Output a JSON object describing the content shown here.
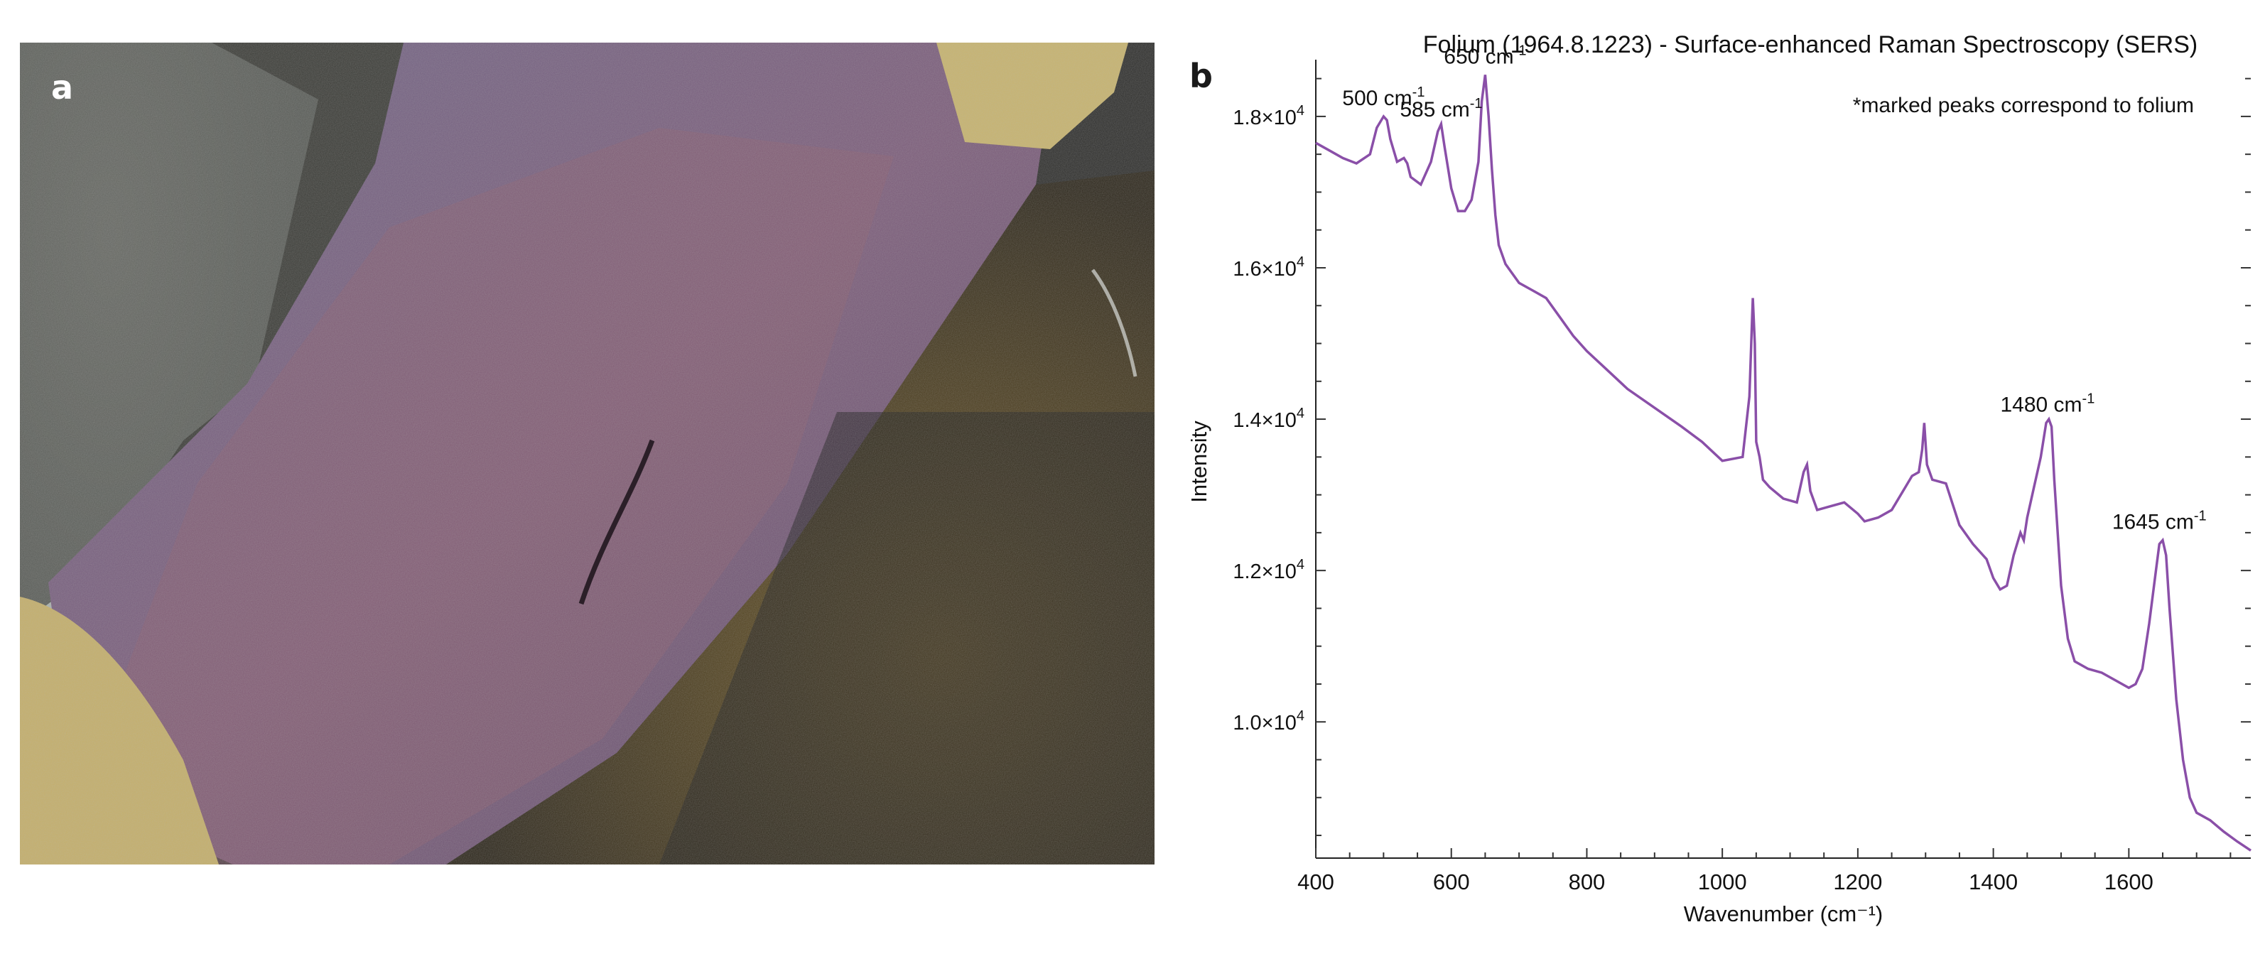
{
  "panels": {
    "a_label": "a",
    "b_label": "b"
  },
  "chart_data": {
    "type": "line",
    "title": "Folium (1964.8.1223) - Surface-enhanced Raman Spectroscopy (SERS)",
    "xlabel": "Wavenumber (cm⁻¹)",
    "ylabel": "Intensity",
    "xlim": [
      400,
      1780
    ],
    "ylim": [
      8200,
      18750
    ],
    "x_ticks": [
      400,
      600,
      800,
      1000,
      1200,
      1400,
      1600
    ],
    "y_ticks": [
      {
        "value": 10000,
        "mantissa": "1.0×10",
        "exp": "4"
      },
      {
        "value": 12000,
        "mantissa": "1.2×10",
        "exp": "4"
      },
      {
        "value": 14000,
        "mantissa": "1.4×10",
        "exp": "4"
      },
      {
        "value": 16000,
        "mantissa": "1.6×10",
        "exp": "4"
      },
      {
        "value": 18000,
        "mantissa": "1.8×10",
        "exp": "4"
      }
    ],
    "grid": false,
    "line_color": "#8a4fa8",
    "note": "*marked peaks correspond to folium",
    "annotations": [
      {
        "base": "500 cm",
        "sup": "-1",
        "x": 500,
        "y": 18000
      },
      {
        "base": "585 cm",
        "sup": "-1",
        "x": 585,
        "y": 17850
      },
      {
        "base": "650 cm",
        "sup": "-1",
        "x": 650,
        "y": 18550
      },
      {
        "base": "1480 cm",
        "sup": "-1",
        "x": 1480,
        "y": 13950
      },
      {
        "base": "1645 cm",
        "sup": "-1",
        "x": 1645,
        "y": 12400
      }
    ],
    "series": [
      {
        "x": [
          400,
          420,
          440,
          460,
          480,
          490,
          500,
          505,
          510,
          520,
          530,
          535,
          540,
          555,
          570,
          580,
          585,
          590,
          600,
          610,
          620,
          630,
          640,
          645,
          650,
          655,
          660,
          665,
          670,
          680,
          700,
          720,
          740,
          760,
          780,
          800,
          830,
          860,
          900,
          940,
          970,
          1000,
          1030,
          1040,
          1045,
          1048,
          1050,
          1055,
          1060,
          1070,
          1090,
          1110,
          1120,
          1125,
          1130,
          1140,
          1160,
          1180,
          1200,
          1210,
          1230,
          1250,
          1270,
          1280,
          1290,
          1295,
          1298,
          1302,
          1310,
          1330,
          1350,
          1370,
          1390,
          1400,
          1410,
          1420,
          1430,
          1440,
          1445,
          1450,
          1460,
          1470,
          1478,
          1482,
          1486,
          1490,
          1500,
          1510,
          1520,
          1540,
          1560,
          1580,
          1600,
          1610,
          1620,
          1630,
          1640,
          1645,
          1650,
          1655,
          1660,
          1670,
          1680,
          1690,
          1700,
          1720,
          1740,
          1760,
          1780
        ],
        "y": [
          17650,
          17550,
          17450,
          17380,
          17500,
          17850,
          18000,
          17950,
          17700,
          17400,
          17450,
          17380,
          17200,
          17100,
          17400,
          17800,
          17900,
          17600,
          17050,
          16750,
          16750,
          16900,
          17400,
          18200,
          18550,
          18000,
          17300,
          16700,
          16300,
          16050,
          15800,
          15700,
          15600,
          15350,
          15100,
          14900,
          14650,
          14400,
          14150,
          13900,
          13700,
          13450,
          13500,
          14300,
          15600,
          15000,
          13700,
          13500,
          13200,
          13100,
          12950,
          12900,
          13300,
          13400,
          13050,
          12800,
          12850,
          12900,
          12750,
          12650,
          12700,
          12800,
          13100,
          13250,
          13300,
          13600,
          13950,
          13400,
          13200,
          13150,
          12600,
          12350,
          12150,
          11900,
          11750,
          11800,
          12200,
          12500,
          12400,
          12700,
          13100,
          13500,
          13950,
          14000,
          13900,
          13200,
          11800,
          11100,
          10800,
          10700,
          10650,
          10550,
          10450,
          10500,
          10700,
          11300,
          12000,
          12350,
          12400,
          12200,
          11500,
          10300,
          9500,
          9000,
          8800,
          8700,
          8550,
          8420,
          8300
        ]
      }
    ]
  }
}
